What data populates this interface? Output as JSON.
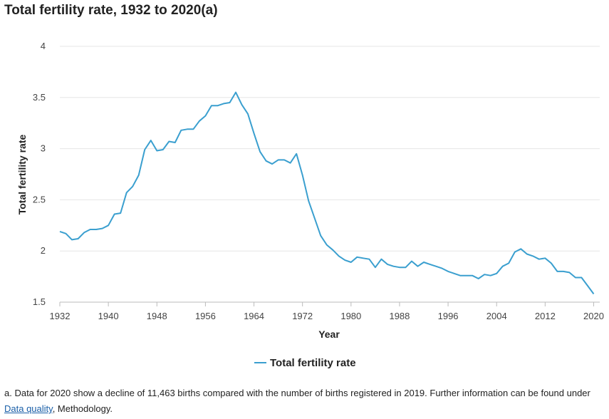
{
  "title": "Total fertility rate, 1932 to 2020(a)",
  "chart_data": {
    "type": "line",
    "title": "Total fertility rate, 1932 to 2020(a)",
    "xlabel": "Year",
    "ylabel": "Total fertility rate",
    "xlim": [
      1932,
      2020
    ],
    "ylim": [
      1.5,
      4
    ],
    "x_ticks": [
      "1932",
      "1940",
      "1948",
      "1956",
      "1964",
      "1972",
      "1980",
      "1988",
      "1996",
      "2004",
      "2012",
      "2020"
    ],
    "y_ticks": [
      "1.5",
      "2",
      "2.5",
      "3",
      "3.5",
      "4"
    ],
    "grid": true,
    "legend_position": "bottom",
    "color": "#3a9fcf",
    "series": [
      {
        "name": "Total fertility rate",
        "x": [
          1932,
          1933,
          1934,
          1935,
          1936,
          1937,
          1938,
          1939,
          1940,
          1941,
          1942,
          1943,
          1944,
          1945,
          1946,
          1947,
          1948,
          1949,
          1950,
          1951,
          1952,
          1953,
          1954,
          1955,
          1956,
          1957,
          1958,
          1959,
          1960,
          1961,
          1962,
          1963,
          1964,
          1965,
          1966,
          1967,
          1968,
          1969,
          1970,
          1971,
          1972,
          1973,
          1974,
          1975,
          1976,
          1977,
          1978,
          1979,
          1980,
          1981,
          1982,
          1983,
          1984,
          1985,
          1986,
          1987,
          1988,
          1989,
          1990,
          1991,
          1992,
          1993,
          1994,
          1995,
          1996,
          1997,
          1998,
          1999,
          2000,
          2001,
          2002,
          2003,
          2004,
          2005,
          2006,
          2007,
          2008,
          2009,
          2010,
          2011,
          2012,
          2013,
          2014,
          2015,
          2016,
          2017,
          2018,
          2019,
          2020
        ],
        "y": [
          2.19,
          2.17,
          2.11,
          2.12,
          2.18,
          2.21,
          2.21,
          2.22,
          2.25,
          2.36,
          2.37,
          2.57,
          2.63,
          2.74,
          2.99,
          3.08,
          2.98,
          2.99,
          3.07,
          3.06,
          3.18,
          3.19,
          3.19,
          3.27,
          3.32,
          3.42,
          3.42,
          3.44,
          3.45,
          3.55,
          3.43,
          3.34,
          3.15,
          2.97,
          2.88,
          2.85,
          2.89,
          2.89,
          2.86,
          2.95,
          2.74,
          2.49,
          2.32,
          2.15,
          2.06,
          2.01,
          1.95,
          1.91,
          1.89,
          1.94,
          1.93,
          1.92,
          1.84,
          1.92,
          1.87,
          1.85,
          1.84,
          1.84,
          1.9,
          1.85,
          1.89,
          1.87,
          1.85,
          1.83,
          1.8,
          1.78,
          1.76,
          1.76,
          1.76,
          1.73,
          1.77,
          1.76,
          1.78,
          1.85,
          1.88,
          1.99,
          2.02,
          1.97,
          1.95,
          1.92,
          1.93,
          1.88,
          1.8,
          1.8,
          1.79,
          1.74,
          1.74,
          1.66,
          1.58
        ]
      }
    ]
  },
  "footnote": {
    "text_before": "a. Data for 2020 show a decline of 11,463 births compared with the number of births registered in 2019. Further information can be found under ",
    "link_text": "Data quality",
    "text_after": ", Methodology."
  }
}
